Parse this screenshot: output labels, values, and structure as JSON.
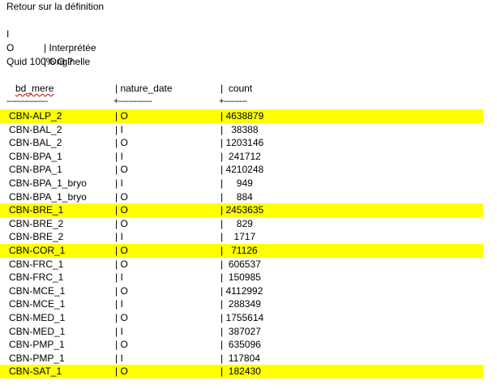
{
  "intro": {
    "line1": "Retour sur la définition",
    "legend": [
      {
        "key": "I",
        "value": "| Interprétée"
      },
      {
        "key": "O",
        "value": "| Originelle"
      }
    ],
    "question": "Quid 100% O ?"
  },
  "table": {
    "headers": [
      "bd_mere",
      "| nature_date",
      "|  count"
    ],
    "separators": [
      "----------------",
      "+-------------",
      "+---------"
    ],
    "rows": [
      {
        "bd_mere": "CBN-ALP_2",
        "nature_date": "| O",
        "count": "| 4638879",
        "highlight": true
      },
      {
        "bd_mere": "CBN-BAL_2",
        "nature_date": "| I",
        "count": "|   38388",
        "highlight": false
      },
      {
        "bd_mere": "CBN-BAL_2",
        "nature_date": "| O",
        "count": "| 1203146",
        "highlight": false
      },
      {
        "bd_mere": "CBN-BPA_1",
        "nature_date": "| I",
        "count": "|  241712",
        "highlight": false
      },
      {
        "bd_mere": "CBN-BPA_1",
        "nature_date": "| O",
        "count": "| 4210248",
        "highlight": false
      },
      {
        "bd_mere": "CBN-BPA_1_bryo",
        "nature_date": "| I",
        "count": "|     949",
        "highlight": false
      },
      {
        "bd_mere": "CBN-BPA_1_bryo",
        "nature_date": "| O",
        "count": "|     884",
        "highlight": false
      },
      {
        "bd_mere": "CBN-BRE_1",
        "nature_date": "| O",
        "count": "| 2453635",
        "highlight": true
      },
      {
        "bd_mere": "CBN-BRE_2",
        "nature_date": "| O",
        "count": "|     829",
        "highlight": false
      },
      {
        "bd_mere": "CBN-BRE_2",
        "nature_date": "| I",
        "count": "|    1717",
        "highlight": false
      },
      {
        "bd_mere": "CBN-COR_1",
        "nature_date": "| O",
        "count": "|   71126",
        "highlight": true
      },
      {
        "bd_mere": "CBN-FRC_1",
        "nature_date": "| O",
        "count": "|  606537",
        "highlight": false
      },
      {
        "bd_mere": "CBN-FRC_1",
        "nature_date": "| I",
        "count": "|  150985",
        "highlight": false
      },
      {
        "bd_mere": "CBN-MCE_1",
        "nature_date": "| O",
        "count": "| 4112992",
        "highlight": false
      },
      {
        "bd_mere": "CBN-MCE_1",
        "nature_date": "| I",
        "count": "|  288349",
        "highlight": false
      },
      {
        "bd_mere": "CBN-MED_1",
        "nature_date": "| O",
        "count": "| 1755614",
        "highlight": false
      },
      {
        "bd_mere": "CBN-MED_1",
        "nature_date": "| I",
        "count": "|  387027",
        "highlight": false
      },
      {
        "bd_mere": "CBN-PMP_1",
        "nature_date": "| O",
        "count": "|  635096",
        "highlight": false
      },
      {
        "bd_mere": "CBN-PMP_1",
        "nature_date": "| I",
        "count": "|  117804",
        "highlight": false
      },
      {
        "bd_mere": "CBN-SAT_1",
        "nature_date": "| O",
        "count": "|  182430",
        "highlight": true
      }
    ]
  },
  "colors": {
    "highlight": "#ffff00",
    "spellcheck": "#c00000"
  }
}
